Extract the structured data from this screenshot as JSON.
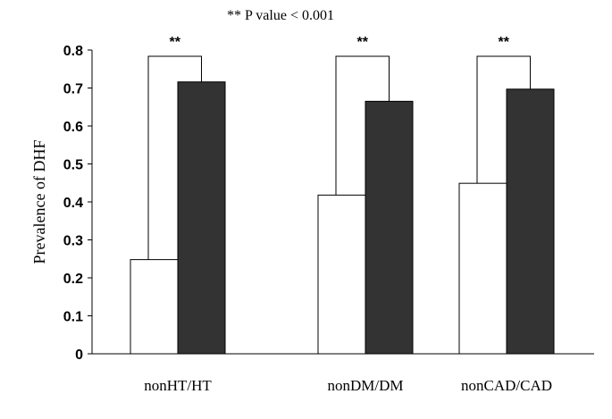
{
  "chart_data": {
    "type": "bar",
    "annotation": "** P value < 0.001",
    "ylabel": "Prevalence of DHF",
    "ylim": [
      0,
      0.8
    ],
    "yticks": [
      "0",
      "0.1",
      "0.2",
      "0.3",
      "0.4",
      "0.5",
      "0.6",
      "0.7",
      "0.8"
    ],
    "categories": [
      "nonHT/HT",
      "nonDM/DM",
      "nonCAD/CAD"
    ],
    "series": [
      {
        "values": [
          0.248,
          0.418,
          0.449
        ],
        "color": "#ffffff"
      },
      {
        "values": [
          0.716,
          0.665,
          0.697
        ],
        "color": "#333333"
      }
    ],
    "significance": [
      "**",
      "**",
      "**"
    ],
    "grid": false,
    "legend": "none"
  }
}
